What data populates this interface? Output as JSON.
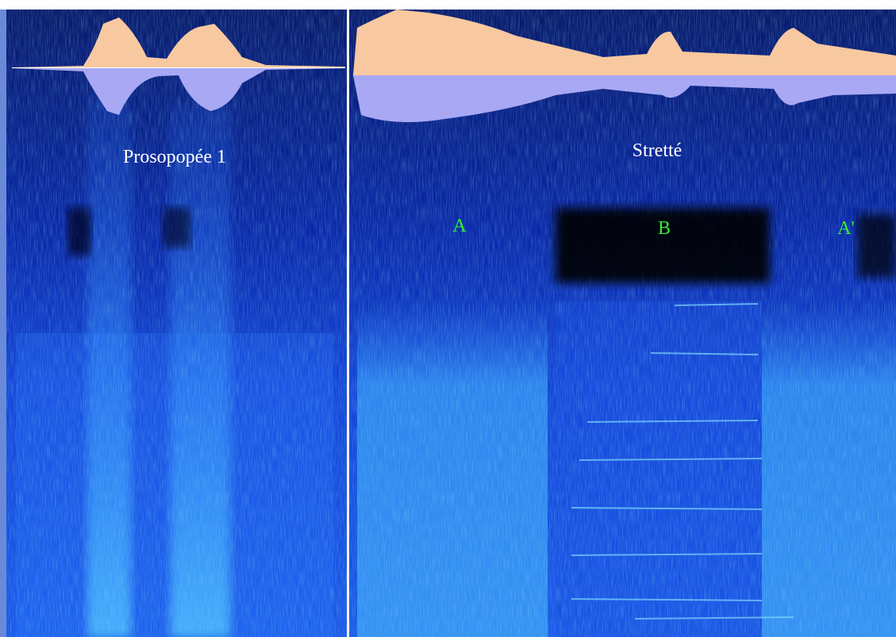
{
  "panels": [
    {
      "title": "Prosopopée 1"
    },
    {
      "title": "Stretté",
      "sections": [
        "A",
        "B",
        "A'"
      ]
    }
  ]
}
